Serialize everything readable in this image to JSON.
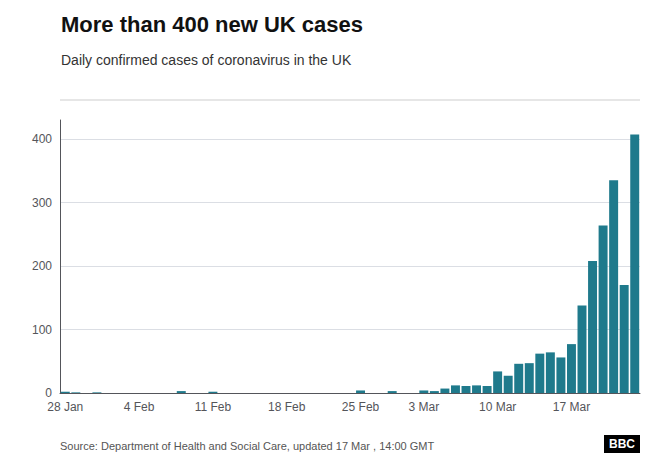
{
  "chart_data": {
    "type": "bar",
    "title": "More than 400 new UK cases",
    "subtitle": "Daily confirmed cases of coronavirus in the UK",
    "source": "Source: Department of Health and Social Care, updated 17 Mar , 14:00 GMT",
    "annotations": [
      "BBC"
    ],
    "categories": [
      "28 Jan",
      null,
      null,
      null,
      null,
      null,
      null,
      "4 Feb",
      null,
      null,
      null,
      null,
      null,
      null,
      "11 Feb",
      null,
      null,
      null,
      null,
      null,
      null,
      "18 Feb",
      null,
      null,
      null,
      null,
      null,
      null,
      "25 Feb",
      null,
      null,
      null,
      null,
      null,
      "3 Mar",
      null,
      null,
      null,
      null,
      null,
      null,
      "10 Mar",
      null,
      null,
      null,
      null,
      null,
      null,
      "17 Mar",
      null,
      null,
      null,
      null,
      null,
      null
    ],
    "values": [
      2,
      1,
      0,
      1,
      0,
      0,
      0,
      0,
      0,
      0,
      0,
      3,
      0,
      0,
      2,
      0,
      0,
      0,
      0,
      0,
      0,
      0,
      0,
      0,
      0,
      0,
      0,
      0,
      4,
      0,
      0,
      3,
      0,
      0,
      4,
      3,
      7,
      12,
      11,
      12,
      11,
      34,
      27,
      46,
      47,
      62,
      64,
      56,
      77,
      138,
      208,
      264,
      335,
      170,
      407
    ],
    "color": "#1f7a8c",
    "ylim": [
      0,
      430
    ],
    "yticks": [
      0,
      100,
      200,
      300,
      400
    ],
    "grid": true
  }
}
